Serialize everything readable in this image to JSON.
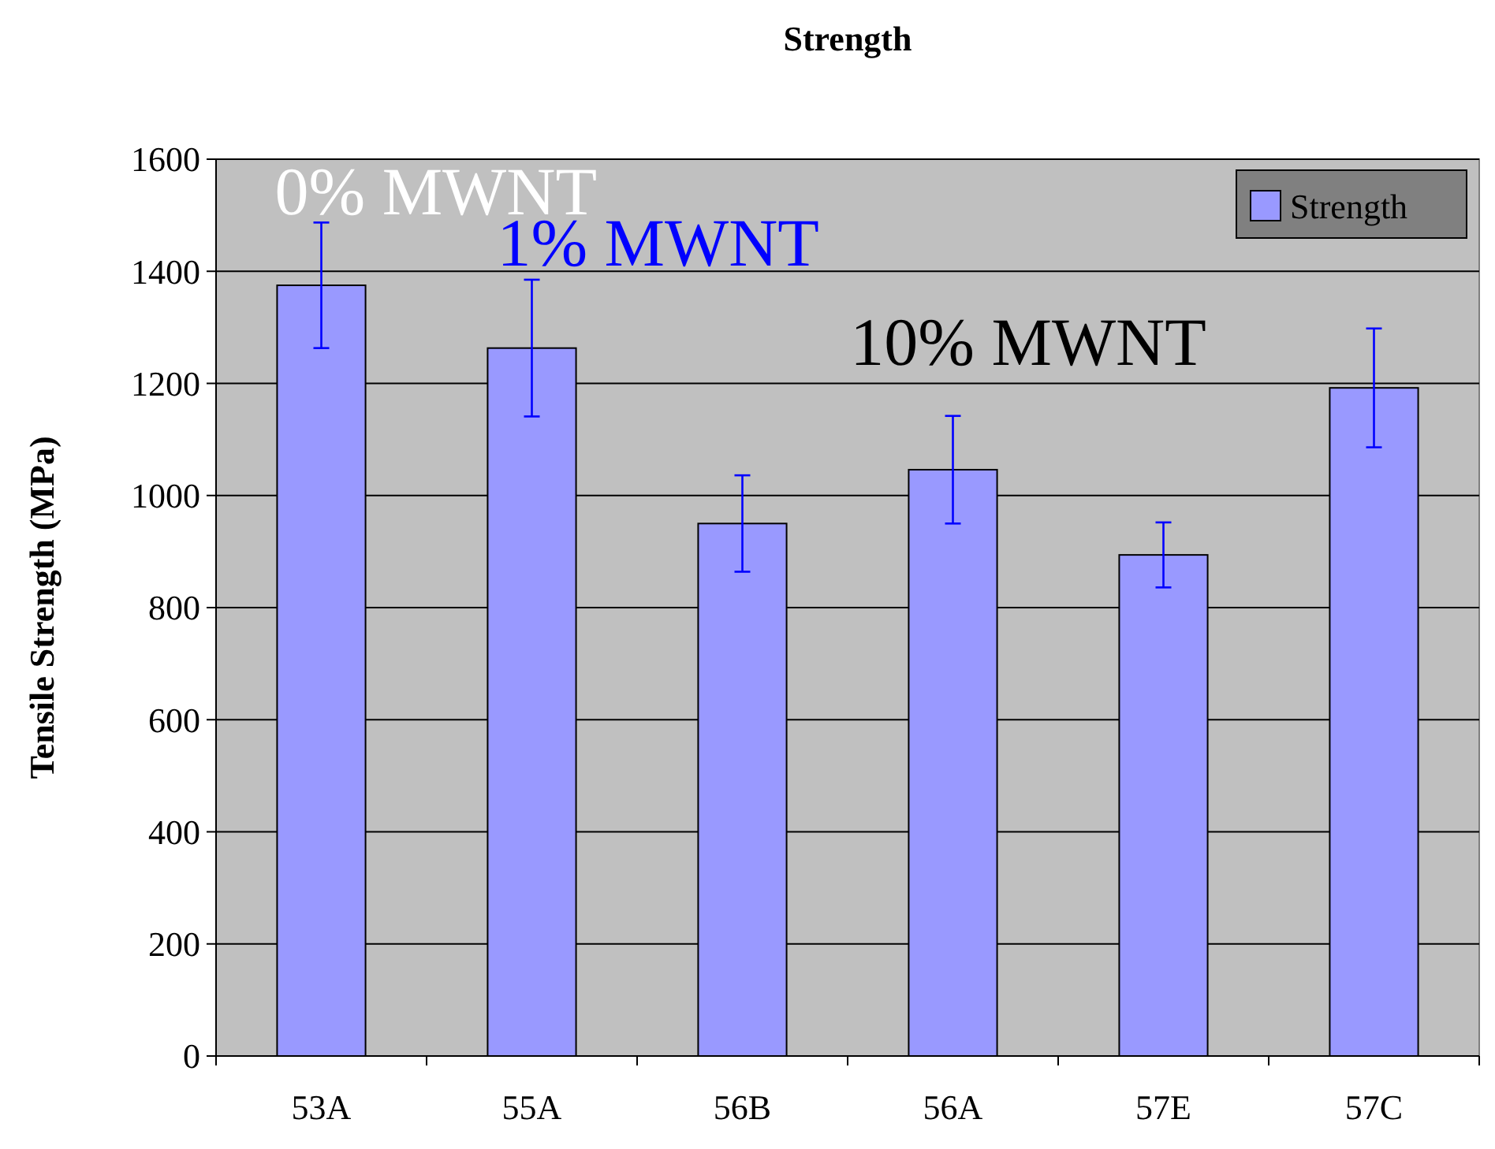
{
  "chart_data": {
    "type": "bar",
    "title": "Strength",
    "ylabel": "Tensile Strength (MPa)",
    "categories": [
      "53A",
      "55A",
      "56B",
      "56A",
      "57E",
      "57C"
    ],
    "series": [
      {
        "name": "Strength",
        "color": "#9999ff",
        "values": [
          1375,
          1263,
          950,
          1046,
          894,
          1192
        ],
        "errors": [
          112,
          122,
          86,
          96,
          58,
          106
        ]
      }
    ],
    "ylim": [
      0,
      1600
    ],
    "yticks": [
      0,
      200,
      400,
      600,
      800,
      1000,
      1200,
      1400,
      1600
    ],
    "grid": "y",
    "legend": "top right",
    "annotations": [
      "0% MWNT",
      "1% MWNT",
      "10% MWNT"
    ]
  }
}
